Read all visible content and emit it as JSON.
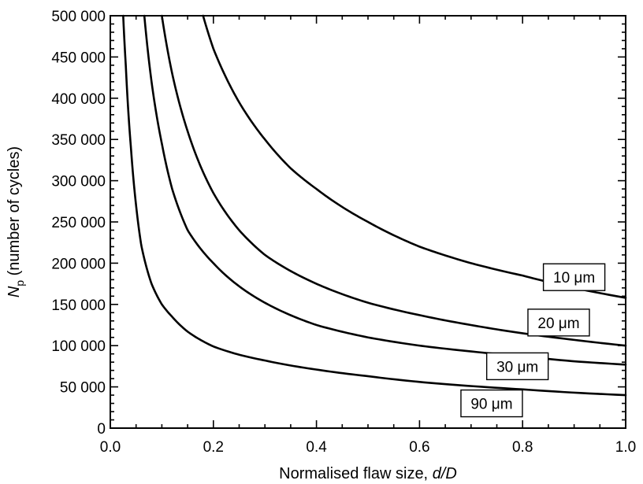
{
  "chart_data": {
    "type": "line",
    "xlabel_prefix": "Normalised flaw size, ",
    "xlabel_var": "d/D",
    "ylabel_var": "N",
    "ylabel_sub": "p",
    "ylabel_rest": " (number of cycles)",
    "xlim": [
      0,
      1
    ],
    "ylim": [
      0,
      500000
    ],
    "x_ticks": [
      0.0,
      0.2,
      0.4,
      0.6,
      0.8,
      1.0
    ],
    "x_tick_labels": [
      "0.0",
      "0.2",
      "0.4",
      "0.6",
      "0.8",
      "1.0"
    ],
    "y_ticks": [
      0,
      50000,
      100000,
      150000,
      200000,
      250000,
      300000,
      350000,
      400000,
      450000,
      500000
    ],
    "y_tick_labels": [
      "0",
      "50 000",
      "100 000",
      "150 000",
      "200 000",
      "250 000",
      "300 000",
      "350 000",
      "400 000",
      "450 000",
      "500 000"
    ],
    "legend": "inline labels near curve ends",
    "grid": false,
    "series": [
      {
        "name": "10 μm",
        "x": [
          0.18,
          0.2,
          0.25,
          0.3,
          0.35,
          0.4,
          0.5,
          0.6,
          0.7,
          0.8,
          0.9,
          1.0
        ],
        "values": [
          500000,
          460000,
          395000,
          350000,
          315000,
          290000,
          250000,
          220000,
          200000,
          185000,
          170000,
          158000
        ],
        "label_anchor_x": 0.9,
        "label_anchor_y": 183000
      },
      {
        "name": "20 μm",
        "x": [
          0.1,
          0.12,
          0.15,
          0.2,
          0.25,
          0.3,
          0.4,
          0.5,
          0.6,
          0.7,
          0.8,
          0.9,
          1.0
        ],
        "values": [
          500000,
          430000,
          360000,
          285000,
          240000,
          210000,
          175000,
          152000,
          137000,
          125000,
          115000,
          107000,
          100000
        ],
        "label_anchor_x": 0.87,
        "label_anchor_y": 128000
      },
      {
        "name": "30 μm",
        "x": [
          0.066,
          0.08,
          0.1,
          0.12,
          0.15,
          0.2,
          0.25,
          0.3,
          0.4,
          0.5,
          0.6,
          0.7,
          0.8,
          0.9,
          1.0
        ],
        "values": [
          500000,
          420000,
          345000,
          290000,
          240000,
          200000,
          172000,
          152000,
          125000,
          110000,
          100000,
          93000,
          87000,
          81000,
          77000
        ],
        "label_anchor_x": 0.79,
        "label_anchor_y": 75000
      },
      {
        "name": "90 μm",
        "x": [
          0.025,
          0.03,
          0.04,
          0.05,
          0.06,
          0.08,
          0.1,
          0.12,
          0.15,
          0.2,
          0.25,
          0.3,
          0.4,
          0.5,
          0.6,
          0.7,
          0.8,
          0.9,
          1.0
        ],
        "values": [
          500000,
          440000,
          340000,
          270000,
          222000,
          175000,
          150000,
          135000,
          117000,
          99000,
          89000,
          82000,
          71000,
          63000,
          56000,
          51000,
          47000,
          43000,
          40000
        ],
        "label_anchor_x": 0.74,
        "label_anchor_y": 30000
      }
    ]
  }
}
